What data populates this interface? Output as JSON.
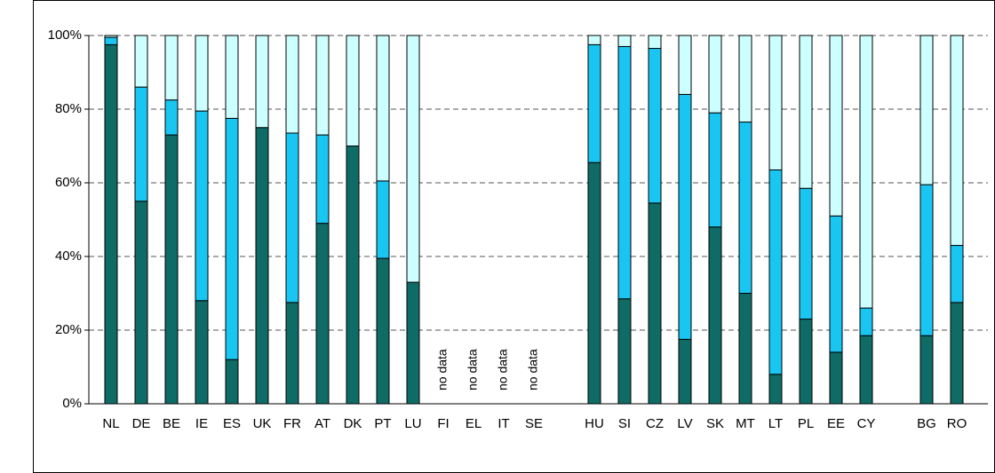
{
  "chart_data": {
    "type": "bar",
    "stacked": true,
    "categories": [
      "NL",
      "DE",
      "BE",
      "IE",
      "ES",
      "UK",
      "FR",
      "AT",
      "DK",
      "PT",
      "LU",
      "FI",
      "EL",
      "IT",
      "SE",
      null,
      "HU",
      "SI",
      "CZ",
      "LV",
      "SK",
      "MT",
      "LT",
      "PL",
      "EE",
      "CY",
      null,
      "BG",
      "RO"
    ],
    "series": [
      {
        "color": "#0f6b66",
        "values": [
          97.5,
          55,
          73,
          28,
          12,
          75,
          27.5,
          49,
          70,
          39.5,
          33,
          null,
          null,
          null,
          null,
          null,
          65.5,
          28.5,
          54.5,
          17.5,
          48,
          30,
          8,
          23,
          14,
          18.5,
          null,
          18.5,
          27.5
        ]
      },
      {
        "color": "#19c6f2",
        "values": [
          2,
          31,
          9.5,
          51.5,
          65.5,
          0,
          46,
          24,
          0,
          21,
          0,
          null,
          null,
          null,
          null,
          null,
          32,
          68.5,
          42,
          66.5,
          31,
          46.5,
          55.5,
          35.5,
          37,
          7.5,
          null,
          41,
          15.5
        ]
      },
      {
        "color": "#ccffff",
        "values": [
          0.5,
          14,
          17.5,
          20.5,
          22.5,
          25,
          26.5,
          27,
          30,
          39.5,
          67,
          null,
          null,
          null,
          null,
          null,
          2.5,
          3,
          3.5,
          16,
          21,
          23.5,
          36.5,
          41.5,
          49,
          74,
          null,
          40.5,
          57
        ]
      }
    ],
    "annotations": [
      {
        "text": "no data",
        "category": "FI"
      },
      {
        "text": "no data",
        "category": "EL"
      },
      {
        "text": "no data",
        "category": "IT"
      },
      {
        "text": "no data",
        "category": "SE"
      }
    ],
    "ylim": [
      0,
      100
    ],
    "yticks": [
      {
        "value": 0,
        "label": "0%"
      },
      {
        "value": 20,
        "label": "20%"
      },
      {
        "value": 40,
        "label": "40%"
      },
      {
        "value": 60,
        "label": "60%"
      },
      {
        "value": 80,
        "label": "80%"
      },
      {
        "value": 100,
        "label": "100%"
      }
    ],
    "grid": true
  }
}
